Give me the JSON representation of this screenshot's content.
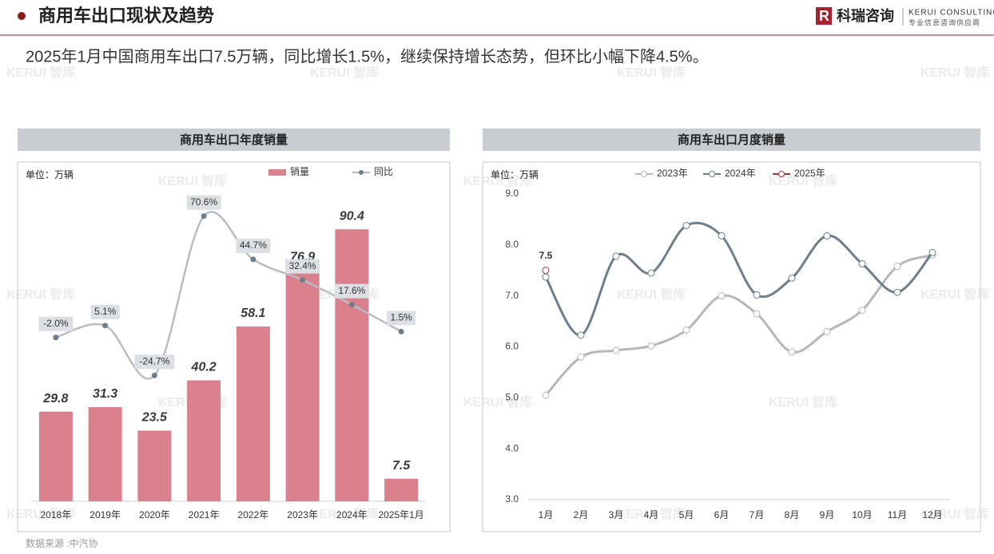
{
  "header": {
    "title": "商用车出口现状及趋势",
    "brand": "科瑞咨询",
    "brand_en": "KERUI CONSULTING",
    "brand_sub": "专业信息咨询供应商"
  },
  "summary": "2025年1月中国商用车出口7.5万辆，同比增长1.5%，继续保持增长态势，但环比小幅下降4.5%。",
  "watermark": "KERUI 智库",
  "source": "数据来源 :中汽协",
  "chart_data": [
    {
      "type": "bar",
      "title": "商用车出口年度销量",
      "unit": "单位：万辆",
      "categories": [
        "2018年",
        "2019年",
        "2020年",
        "2021年",
        "2022年",
        "2023年",
        "2024年",
        "2025年1月"
      ],
      "ylim": [
        0,
        100
      ],
      "y2lim": [
        -100,
        80
      ],
      "series": [
        {
          "name": "销量",
          "type": "bar",
          "color": "#db818d",
          "values": [
            29.8,
            31.3,
            23.5,
            40.2,
            58.1,
            76.9,
            90.4,
            7.5
          ]
        },
        {
          "name": "同比",
          "type": "line",
          "axis": "y2",
          "color": "#b9bdc3",
          "marker_color": "#6f7c8c",
          "values": [
            -2.0,
            5.1,
            -24.7,
            70.6,
            44.7,
            32.4,
            17.6,
            1.5
          ],
          "value_labels": [
            "-2.0%",
            "5.1%",
            "-24.7%",
            "70.6%",
            "44.7%",
            "32.4%",
            "17.6%",
            "1.5%"
          ]
        }
      ]
    },
    {
      "type": "line",
      "title": "商用车出口月度销量",
      "unit": "单位：万辆",
      "categories": [
        "1月",
        "2月",
        "3月",
        "4月",
        "5月",
        "6月",
        "7月",
        "8月",
        "9月",
        "10月",
        "11月",
        "12月"
      ],
      "ylim": [
        3,
        9
      ],
      "yticks": [
        {
          "value": 3,
          "label": "3.0"
        },
        {
          "value": 4,
          "label": "4.0"
        },
        {
          "value": 5,
          "label": "5.0"
        },
        {
          "value": 6,
          "label": "6.0"
        },
        {
          "value": 7,
          "label": "7.0"
        },
        {
          "value": 8,
          "label": "8.0"
        },
        {
          "value": 9,
          "label": "9.0"
        }
      ],
      "grid": false,
      "series": [
        {
          "name": "2023年",
          "color": "#b4b7bb",
          "values": [
            5.05,
            5.8,
            5.93,
            6.02,
            6.33,
            7.0,
            6.65,
            5.9,
            6.3,
            6.72,
            7.58,
            7.8
          ]
        },
        {
          "name": "2024年",
          "color": "#6b7f8c",
          "values": [
            7.37,
            6.23,
            7.78,
            7.45,
            8.38,
            8.18,
            7.02,
            7.35,
            8.18,
            7.63,
            7.07,
            7.85
          ]
        },
        {
          "name": "2025年",
          "color": "#a8323e",
          "values": [
            7.5,
            null,
            null,
            null,
            null,
            null,
            null,
            null,
            null,
            null,
            null,
            null
          ],
          "data_labels": true
        }
      ]
    }
  ]
}
